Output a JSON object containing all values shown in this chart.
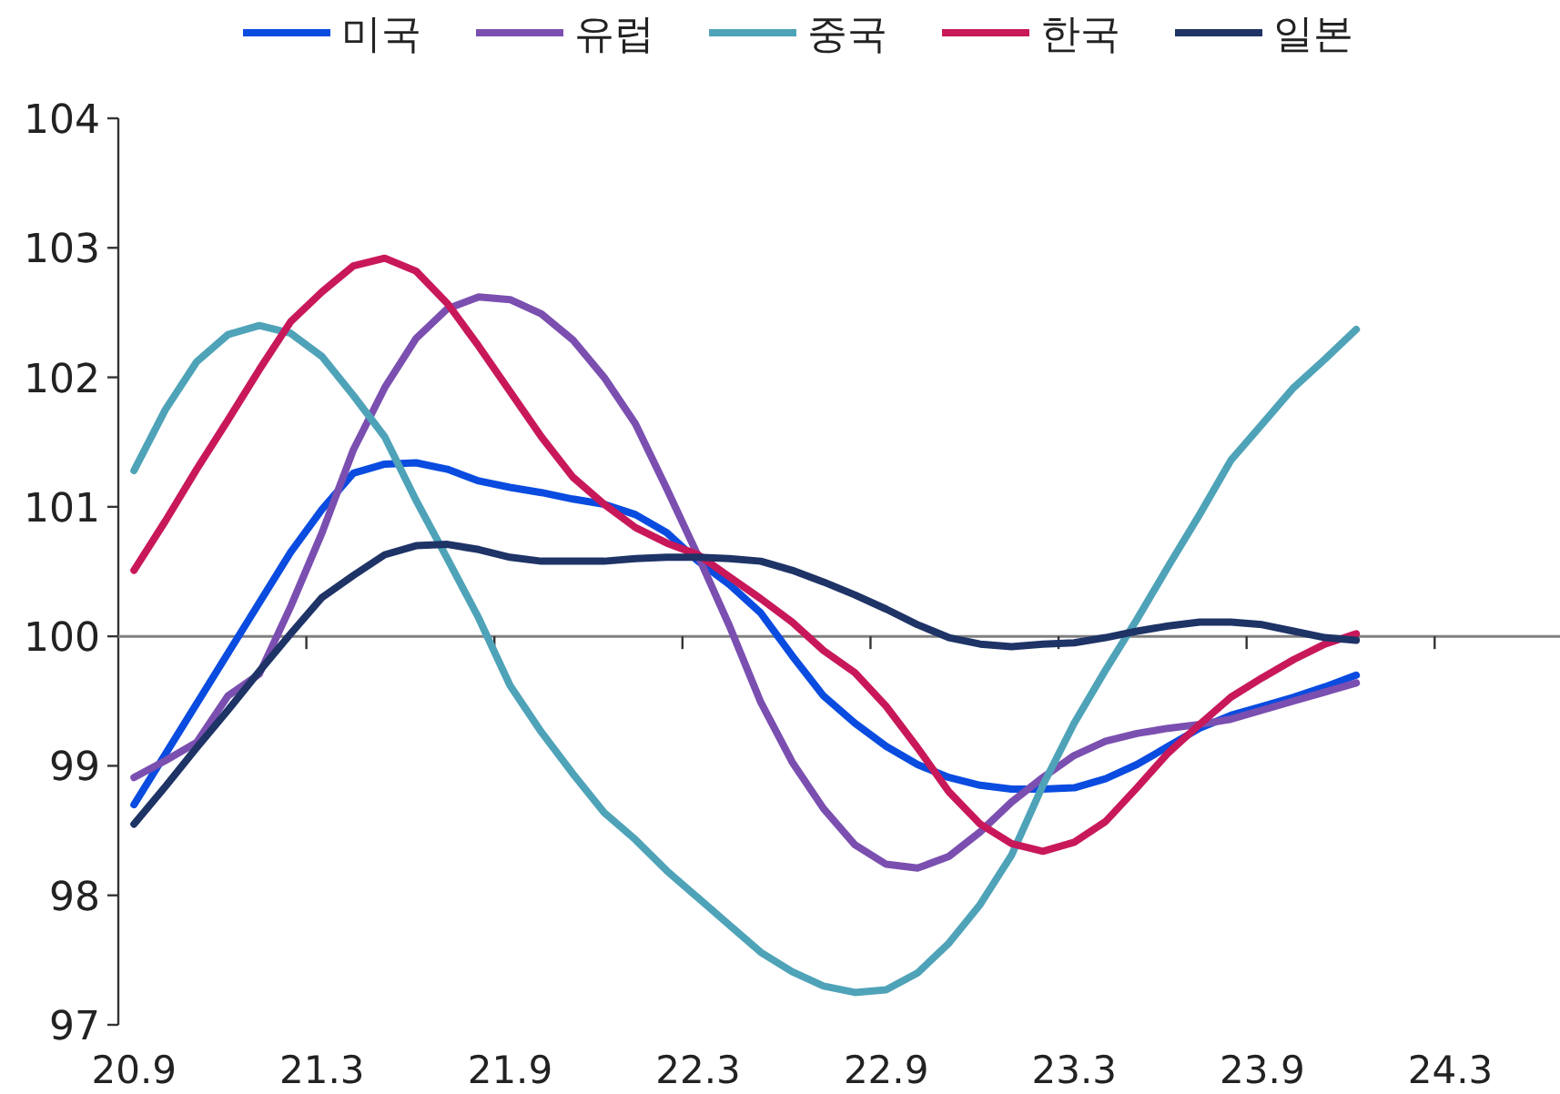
{
  "chart_data": {
    "type": "line",
    "categories": [
      "20.9",
      null,
      null,
      null,
      null,
      null,
      "21.3",
      null,
      null,
      null,
      null,
      null,
      "21.9",
      null,
      null,
      null,
      null,
      null,
      "22.3",
      null,
      null,
      null,
      null,
      null,
      "22.9",
      null,
      null,
      null,
      null,
      null,
      "23.3",
      null,
      null,
      null,
      null,
      null,
      "23.9",
      null,
      null,
      null,
      null,
      null,
      "24.3",
      null,
      null,
      null
    ],
    "series": [
      {
        "name": "미국",
        "color": "#0a4be0",
        "values": [
          98.7,
          99.09,
          99.48,
          99.87,
          100.26,
          100.65,
          100.98,
          101.26,
          101.33,
          101.34,
          101.29,
          101.2,
          101.15,
          101.11,
          101.06,
          101.02,
          100.94,
          100.8,
          100.58,
          100.4,
          100.18,
          99.85,
          99.54,
          99.33,
          99.15,
          99.01,
          98.91,
          98.85,
          98.82,
          98.82,
          98.83,
          98.9,
          99.01,
          99.15,
          99.29,
          99.39,
          99.46,
          99.53,
          99.61,
          99.7,
          null,
          null,
          null,
          null,
          null,
          null
        ]
      },
      {
        "name": "유럽",
        "color": "#7b4fb0",
        "values": [
          98.91,
          99.04,
          99.18,
          99.54,
          99.71,
          100.23,
          100.8,
          101.44,
          101.92,
          102.3,
          102.53,
          102.62,
          102.6,
          102.49,
          102.29,
          102.0,
          101.64,
          101.14,
          100.62,
          100.08,
          99.49,
          99.03,
          98.67,
          98.39,
          98.24,
          98.21,
          98.3,
          98.49,
          98.72,
          98.91,
          99.08,
          99.19,
          99.25,
          99.29,
          99.32,
          99.36,
          99.43,
          99.5,
          99.57,
          99.64,
          null,
          null,
          null,
          null,
          null,
          null
        ]
      },
      {
        "name": "중국",
        "color": "#4fa3b8",
        "values": [
          101.28,
          101.75,
          102.12,
          102.33,
          102.4,
          102.34,
          102.16,
          101.86,
          101.54,
          101.05,
          100.6,
          100.14,
          99.62,
          99.26,
          98.94,
          98.64,
          98.43,
          98.19,
          97.98,
          97.77,
          97.56,
          97.41,
          97.3,
          97.25,
          97.27,
          97.4,
          97.63,
          97.93,
          98.31,
          98.85,
          99.33,
          99.74,
          100.13,
          100.54,
          100.94,
          101.36,
          101.64,
          101.92,
          102.14,
          102.37,
          null,
          null,
          null,
          null,
          null,
          null
        ]
      },
      {
        "name": "한국",
        "color": "#c8185a",
        "values": [
          100.51,
          100.89,
          101.29,
          101.67,
          102.06,
          102.43,
          102.66,
          102.86,
          102.92,
          102.82,
          102.57,
          102.24,
          101.89,
          101.54,
          101.23,
          101.02,
          100.84,
          100.72,
          100.63,
          100.46,
          100.29,
          100.11,
          99.89,
          99.72,
          99.46,
          99.14,
          98.8,
          98.55,
          98.4,
          98.34,
          98.41,
          98.57,
          98.83,
          99.1,
          99.32,
          99.53,
          99.68,
          99.82,
          99.94,
          100.02,
          null,
          null,
          null,
          null,
          null,
          null
        ]
      },
      {
        "name": "일본",
        "color": "#1e3366",
        "values": [
          98.55,
          98.84,
          99.14,
          99.43,
          99.73,
          100.02,
          100.3,
          100.47,
          100.63,
          100.7,
          100.71,
          100.67,
          100.61,
          100.58,
          100.58,
          100.58,
          100.6,
          100.61,
          100.61,
          100.6,
          100.58,
          100.51,
          100.42,
          100.32,
          100.21,
          100.09,
          99.99,
          99.94,
          99.92,
          99.94,
          99.95,
          99.99,
          100.04,
          100.08,
          100.11,
          100.11,
          100.09,
          100.04,
          99.99,
          99.97,
          null,
          null,
          null,
          null,
          null,
          null
        ]
      }
    ],
    "ylim": [
      97,
      104
    ],
    "yticks": [
      97,
      98,
      99,
      100,
      101,
      102,
      103,
      104
    ],
    "ref_lines": [
      {
        "axis": "y",
        "value": 100,
        "color": "#808080"
      }
    ],
    "legend": "top",
    "grid": false,
    "marker": "none",
    "line_style": "solid"
  }
}
